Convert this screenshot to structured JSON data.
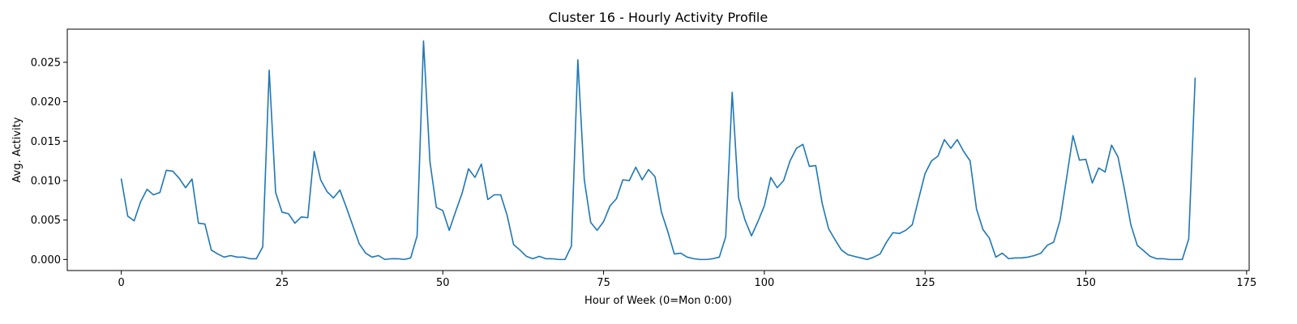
{
  "chart_data": {
    "type": "line",
    "title": "Cluster 16 - Hourly Activity Profile",
    "xlabel": "Hour of Week (0=Mon 0:00)",
    "ylabel": "Avg. Activity",
    "xlim": [
      -8.4,
      175.4
    ],
    "ylim": [
      -0.0014,
      0.0292
    ],
    "xticks": [
      0,
      25,
      50,
      75,
      100,
      125,
      150,
      175
    ],
    "xtick_labels": [
      "0",
      "25",
      "50",
      "75",
      "100",
      "125",
      "150",
      "175"
    ],
    "yticks": [
      0.0,
      0.005,
      0.01,
      0.015,
      0.02,
      0.025
    ],
    "ytick_labels": [
      "0.000",
      "0.005",
      "0.010",
      "0.015",
      "0.020",
      "0.025"
    ],
    "grid": false,
    "series": [
      {
        "color": "#1f77b4",
        "x": [
          0,
          1,
          2,
          3,
          4,
          5,
          6,
          7,
          8,
          9,
          10,
          11,
          12,
          13,
          14,
          15,
          16,
          17,
          18,
          19,
          20,
          21,
          22,
          23,
          24,
          25,
          26,
          27,
          28,
          29,
          30,
          31,
          32,
          33,
          34,
          35,
          36,
          37,
          38,
          39,
          40,
          41,
          42,
          43,
          44,
          45,
          46,
          47,
          48,
          49,
          50,
          51,
          52,
          53,
          54,
          55,
          56,
          57,
          58,
          59,
          60,
          61,
          62,
          63,
          64,
          65,
          66,
          67,
          68,
          69,
          70,
          71,
          72,
          73,
          74,
          75,
          76,
          77,
          78,
          79,
          80,
          81,
          82,
          83,
          84,
          85,
          86,
          87,
          88,
          89,
          90,
          91,
          92,
          93,
          94,
          95,
          96,
          97,
          98,
          99,
          100,
          101,
          102,
          103,
          104,
          105,
          106,
          107,
          108,
          109,
          110,
          111,
          112,
          113,
          114,
          115,
          116,
          117,
          118,
          119,
          120,
          121,
          122,
          123,
          124,
          125,
          126,
          127,
          128,
          129,
          130,
          131,
          132,
          133,
          134,
          135,
          136,
          137,
          138,
          139,
          140,
          141,
          142,
          143,
          144,
          145,
          146,
          147,
          148,
          149,
          150,
          151,
          152,
          153,
          154,
          155,
          156,
          157,
          158,
          159,
          160,
          161,
          162,
          163,
          164,
          165,
          166,
          167
        ],
        "values": [
          0.0102,
          0.0055,
          0.0049,
          0.0073,
          0.0089,
          0.0082,
          0.0085,
          0.0113,
          0.0112,
          0.0103,
          0.0091,
          0.0102,
          0.0046,
          0.0045,
          0.0012,
          0.0007,
          0.0003,
          0.0005,
          0.0003,
          0.0003,
          0.0001,
          0.0001,
          0.0016,
          0.024,
          0.0085,
          0.006,
          0.0058,
          0.0046,
          0.0054,
          0.0053,
          0.0137,
          0.0101,
          0.0086,
          0.0078,
          0.0088,
          0.0066,
          0.0043,
          0.002,
          0.0008,
          0.0003,
          0.0005,
          0.0,
          0.0001,
          0.0001,
          0.0,
          0.0002,
          0.003,
          0.0277,
          0.0124,
          0.0066,
          0.0062,
          0.0037,
          0.0061,
          0.0084,
          0.0115,
          0.0104,
          0.0121,
          0.0076,
          0.0082,
          0.0082,
          0.0056,
          0.0019,
          0.0012,
          0.0004,
          0.0001,
          0.0004,
          0.0001,
          0.0001,
          0.0,
          0.0,
          0.0017,
          0.0253,
          0.0101,
          0.0047,
          0.0037,
          0.0048,
          0.0068,
          0.0077,
          0.0101,
          0.01,
          0.0117,
          0.0101,
          0.0114,
          0.0105,
          0.006,
          0.0035,
          0.0007,
          0.0008,
          0.0003,
          0.0001,
          0.0,
          0.0,
          0.0001,
          0.0003,
          0.0029,
          0.0212,
          0.0078,
          0.005,
          0.003,
          0.0048,
          0.0068,
          0.0104,
          0.0091,
          0.01,
          0.0125,
          0.0141,
          0.0146,
          0.0118,
          0.0119,
          0.0071,
          0.0039,
          0.0025,
          0.0012,
          0.0006,
          0.0004,
          0.0002,
          0.0,
          0.0003,
          0.0007,
          0.0022,
          0.0034,
          0.0033,
          0.0037,
          0.0044,
          0.0077,
          0.0109,
          0.0125,
          0.0131,
          0.0152,
          0.0141,
          0.0152,
          0.0137,
          0.0125,
          0.0064,
          0.0038,
          0.0027,
          0.0003,
          0.0008,
          0.0001,
          0.0002,
          0.0002,
          0.0003,
          0.0005,
          0.0008,
          0.0018,
          0.0022,
          0.005,
          0.0103,
          0.0157,
          0.0126,
          0.0127,
          0.0097,
          0.0116,
          0.0111,
          0.0145,
          0.013,
          0.0089,
          0.0044,
          0.0018,
          0.0011,
          0.0004,
          0.0001,
          0.0001,
          0.0,
          0.0,
          0.0,
          0.0026,
          0.023
        ]
      }
    ]
  }
}
